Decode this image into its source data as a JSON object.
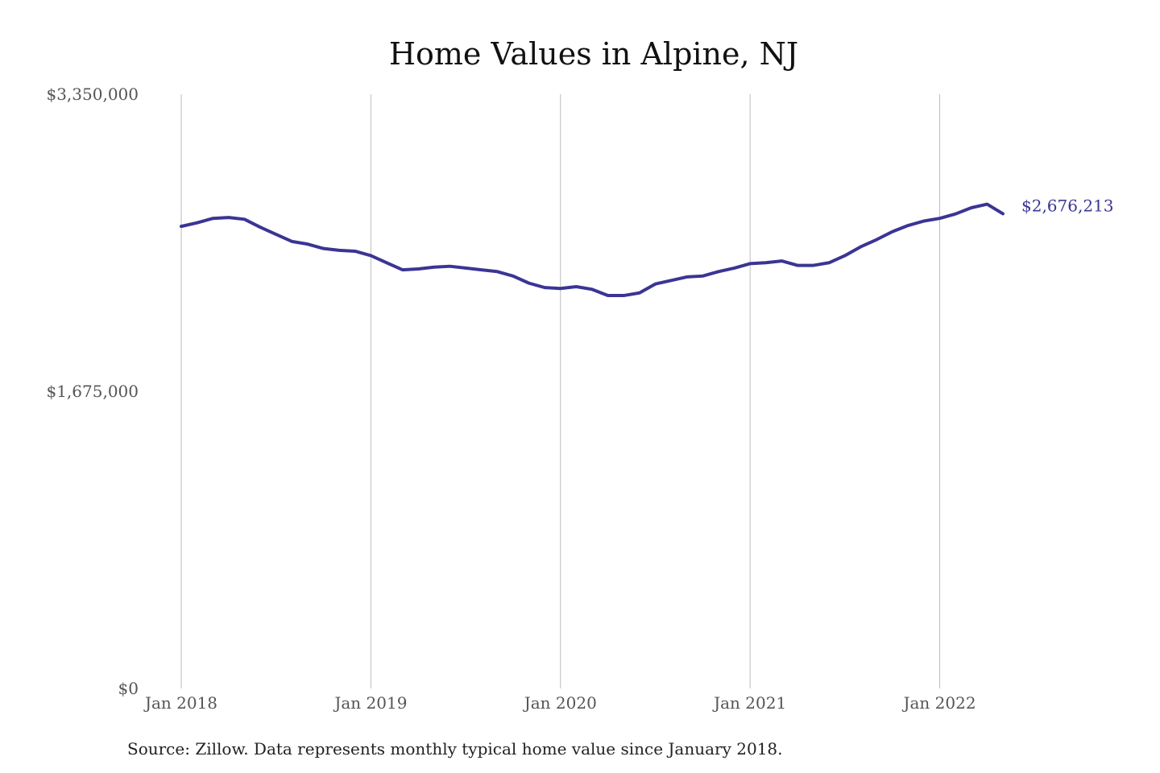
{
  "chart_data": {
    "type": "line",
    "title": "Home Values in Alpine, NJ",
    "xlabel": "",
    "ylabel": "",
    "x_ticks": [
      "Jan 2018",
      "Jan 2019",
      "Jan 2020",
      "Jan 2021",
      "Jan 2022"
    ],
    "y_ticks": [
      "$0",
      "$1,675,000",
      "$3,350,000"
    ],
    "ylim": [
      0,
      3350000
    ],
    "xlim": [
      "2018-01",
      "2022-05"
    ],
    "grid": "vertical",
    "legend": "none",
    "end_label": "$2,676,213",
    "source": "Source: Zillow. Data represents monthly typical home value since January 2018.",
    "series": [
      {
        "color": "#3a3594",
        "x": [
          "2018-01",
          "2018-02",
          "2018-03",
          "2018-04",
          "2018-05",
          "2018-06",
          "2018-07",
          "2018-08",
          "2018-09",
          "2018-10",
          "2018-11",
          "2018-12",
          "2019-01",
          "2019-02",
          "2019-03",
          "2019-04",
          "2019-05",
          "2019-06",
          "2019-07",
          "2019-08",
          "2019-09",
          "2019-10",
          "2019-11",
          "2019-12",
          "2020-01",
          "2020-02",
          "2020-03",
          "2020-04",
          "2020-05",
          "2020-06",
          "2020-07",
          "2020-08",
          "2020-09",
          "2020-10",
          "2020-11",
          "2020-12",
          "2021-01",
          "2021-02",
          "2021-03",
          "2021-04",
          "2021-05",
          "2021-06",
          "2021-07",
          "2021-08",
          "2021-09",
          "2021-10",
          "2021-11",
          "2021-12",
          "2022-01",
          "2022-02",
          "2022-03",
          "2022-04",
          "2022-05"
        ],
        "values": [
          2605000,
          2625000,
          2650000,
          2655000,
          2645000,
          2600000,
          2560000,
          2520000,
          2505000,
          2480000,
          2470000,
          2465000,
          2440000,
          2400000,
          2360000,
          2365000,
          2375000,
          2380000,
          2370000,
          2360000,
          2350000,
          2325000,
          2285000,
          2260000,
          2255000,
          2265000,
          2250000,
          2215000,
          2215000,
          2230000,
          2280000,
          2300000,
          2320000,
          2325000,
          2350000,
          2370000,
          2395000,
          2400000,
          2410000,
          2385000,
          2385000,
          2400000,
          2440000,
          2490000,
          2530000,
          2575000,
          2610000,
          2635000,
          2650000,
          2675000,
          2710000,
          2730000,
          2676213
        ]
      }
    ]
  }
}
